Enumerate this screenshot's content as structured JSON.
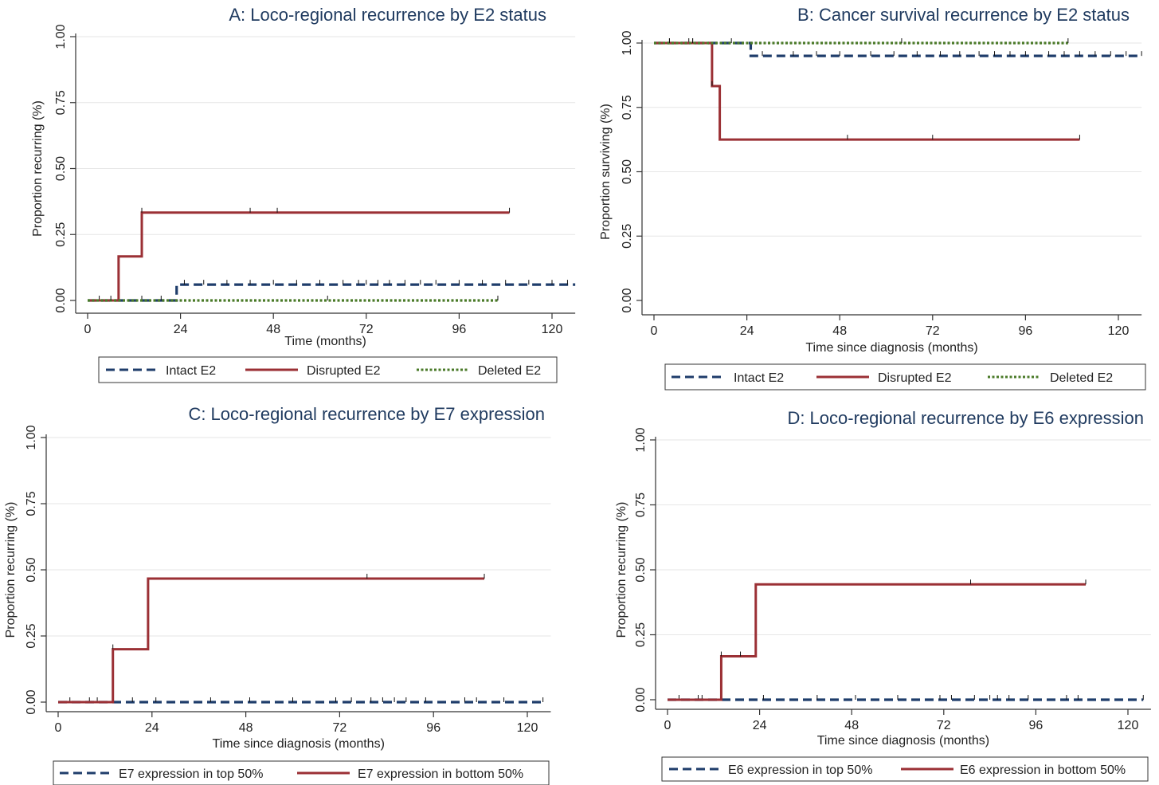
{
  "chart_data": [
    {
      "type": "line",
      "title": "A: Loco-regional recurrence by E2 status",
      "xlabel": "Time (months)",
      "ylabel": "Proportion recurring (%)",
      "xlim": [
        0,
        126
      ],
      "ylim": [
        0,
        1
      ],
      "x_ticks": [
        "0",
        "24",
        "48",
        "72",
        "96",
        "120"
      ],
      "y_ticks": [
        "0.00",
        "0.25",
        "0.50",
        "0.75",
        "1.00"
      ],
      "grid": true,
      "legend_position": "bottom",
      "series": [
        {
          "name": "Intact E2",
          "color": "#1f3d6b",
          "style": "dashed",
          "x": [
            0,
            23,
            23,
            126
          ],
          "y": [
            0,
            0,
            0.06,
            0.06
          ],
          "censored_x": [
            3,
            8,
            14,
            19,
            25,
            30,
            36,
            42,
            48,
            54,
            60,
            66,
            70,
            72,
            75,
            78,
            82,
            86,
            90,
            96,
            102,
            108,
            114,
            120,
            124
          ]
        },
        {
          "name": "Disrupted E2",
          "color": "#9b3035",
          "style": "solid",
          "x": [
            0,
            8,
            8,
            14,
            14,
            109
          ],
          "y": [
            0,
            0,
            0.167,
            0.167,
            0.333,
            0.333
          ],
          "censored_x": [
            14,
            42,
            49,
            109
          ]
        },
        {
          "name": "Deleted E2",
          "color": "#4a7a28",
          "style": "dotted",
          "x": [
            0,
            106
          ],
          "y": [
            0,
            0
          ],
          "censored_x": [
            6,
            62,
            106
          ]
        }
      ]
    },
    {
      "type": "line",
      "title": "B: Cancer survival recurrence by E2 status",
      "xlabel": "Time since diagnosis (months)",
      "ylabel": "Proportion surviving (%)",
      "xlim": [
        0,
        126
      ],
      "ylim": [
        0,
        1
      ],
      "x_ticks": [
        "0",
        "24",
        "48",
        "72",
        "96",
        "120"
      ],
      "y_ticks": [
        "0.00",
        "0.25",
        "0.50",
        "0.75",
        "1.00"
      ],
      "grid": true,
      "legend_position": "bottom",
      "series": [
        {
          "name": "Intact E2",
          "color": "#1f3d6b",
          "style": "dashed",
          "x": [
            0,
            25,
            25,
            126
          ],
          "y": [
            1,
            1,
            0.95,
            0.95
          ],
          "censored_x": [
            4,
            9,
            10,
            20,
            28,
            36,
            42,
            48,
            56,
            62,
            68,
            74,
            79,
            84,
            88,
            92,
            96,
            102,
            106,
            110,
            114,
            118,
            122,
            126
          ]
        },
        {
          "name": "Disrupted E2",
          "color": "#9b3035",
          "style": "solid",
          "x": [
            0,
            15,
            15,
            17,
            17,
            110
          ],
          "y": [
            1,
            1,
            0.833,
            0.833,
            0.625,
            0.625
          ],
          "censored_x": [
            15,
            50,
            72,
            110
          ]
        },
        {
          "name": "Deleted E2",
          "color": "#4a7a28",
          "style": "dotted",
          "x": [
            0,
            107
          ],
          "y": [
            1,
            1
          ],
          "censored_x": [
            4,
            10,
            64,
            107
          ]
        }
      ]
    },
    {
      "type": "line",
      "title": "C: Loco-regional recurrence by E7 expression",
      "xlabel": "Time since diagnosis (months)",
      "ylabel": "Proportion recurring (%)",
      "xlim": [
        0,
        126
      ],
      "ylim": [
        0,
        1
      ],
      "x_ticks": [
        "0",
        "24",
        "48",
        "72",
        "96",
        "120"
      ],
      "y_ticks": [
        "0.00",
        "0.25",
        "0.50",
        "0.75",
        "1.00"
      ],
      "grid": true,
      "legend_position": "bottom",
      "series": [
        {
          "name": "E7 expression in top 50%",
          "color": "#1f3d6b",
          "style": "dashed",
          "x": [
            0,
            124
          ],
          "y": [
            0,
            0
          ],
          "censored_x": [
            3,
            8,
            10,
            19,
            25,
            39,
            49,
            60,
            71,
            75,
            80,
            83,
            86,
            89,
            94,
            104,
            107,
            114,
            124
          ]
        },
        {
          "name": "E7 expression in bottom 50%",
          "color": "#9b3035",
          "style": "solid",
          "x": [
            0,
            14,
            14,
            23,
            23,
            109
          ],
          "y": [
            0,
            0,
            0.2,
            0.2,
            0.467,
            0.467
          ],
          "censored_x": [
            14,
            79,
            109
          ]
        }
      ]
    },
    {
      "type": "line",
      "title": "D: Loco-regional recurrence by E6 expression",
      "xlabel": "Time since diagnosis (months)",
      "ylabel": "Proportion recurring (%)",
      "xlim": [
        0,
        126
      ],
      "ylim": [
        0,
        1
      ],
      "x_ticks": [
        "0",
        "24",
        "48",
        "72",
        "96",
        "120"
      ],
      "y_ticks": [
        "0.00",
        "0.25",
        "0.50",
        "0.75",
        "1.00"
      ],
      "grid": true,
      "legend_position": "bottom",
      "series": [
        {
          "name": "E6 expression in top 50%",
          "color": "#1f3d6b",
          "style": "dashed",
          "x": [
            0,
            124
          ],
          "y": [
            0,
            0
          ],
          "censored_x": [
            3,
            8,
            9,
            25,
            39,
            49,
            60,
            71,
            74,
            80,
            84,
            86,
            89,
            94,
            104,
            107,
            124
          ]
        },
        {
          "name": "E6 expression in bottom 50%",
          "color": "#9b3035",
          "style": "solid",
          "x": [
            0,
            14,
            14,
            23,
            23,
            109
          ],
          "y": [
            0,
            0,
            0.167,
            0.167,
            0.444,
            0.444
          ],
          "censored_x": [
            14,
            19,
            79,
            109
          ]
        }
      ]
    }
  ]
}
